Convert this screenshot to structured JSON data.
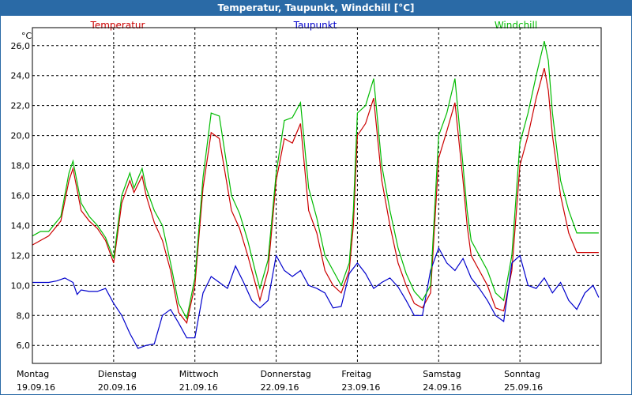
{
  "window": {
    "title": "Temperatur, Taupunkt, Windchill [°C]"
  },
  "chart_data": {
    "type": "line",
    "title": "Temperatur, Taupunkt, Windchill [°C]",
    "ylabel": "°C",
    "ylim": [
      4.8,
      27.2
    ],
    "yticks": [
      "6,0",
      "8,0",
      "10,0",
      "12,0",
      "14,0",
      "16,0",
      "18,0",
      "20,0",
      "22,0",
      "24,0",
      "26,0"
    ],
    "ytick_values": [
      6,
      8,
      10,
      12,
      14,
      16,
      18,
      20,
      22,
      24,
      26
    ],
    "xlim": [
      0,
      7
    ],
    "days": [
      {
        "weekday": "Montag",
        "date": "19.09.16"
      },
      {
        "weekday": "Dienstag",
        "date": "20.09.16"
      },
      {
        "weekday": "Mittwoch",
        "date": "21.09.16"
      },
      {
        "weekday": "Donnerstag",
        "date": "22.09.16"
      },
      {
        "weekday": "Freitag",
        "date": "23.09.16"
      },
      {
        "weekday": "Samstag",
        "date": "24.09.16"
      },
      {
        "weekday": "Sonntag",
        "date": "25.09.16"
      }
    ],
    "grid": true,
    "legend_position": "top",
    "series": [
      {
        "name": "Temperatur",
        "color": "#cc0000",
        "x": [
          0,
          0.1,
          0.2,
          0.35,
          0.45,
          0.5,
          0.6,
          0.7,
          0.8,
          0.9,
          1.0,
          1.1,
          1.2,
          1.25,
          1.35,
          1.4,
          1.5,
          1.6,
          1.7,
          1.8,
          1.9,
          2.0,
          2.1,
          2.2,
          2.3,
          2.45,
          2.55,
          2.65,
          2.75,
          2.8,
          2.9,
          3.0,
          3.1,
          3.2,
          3.3,
          3.4,
          3.5,
          3.6,
          3.7,
          3.8,
          3.9,
          3.95,
          4.0,
          4.1,
          4.2,
          4.3,
          4.4,
          4.5,
          4.6,
          4.7,
          4.8,
          4.9,
          5.0,
          5.1,
          5.2,
          5.3,
          5.35,
          5.4,
          5.5,
          5.6,
          5.7,
          5.8,
          5.9,
          6.0,
          6.1,
          6.2,
          6.3,
          6.35,
          6.4,
          6.5,
          6.6,
          6.7,
          6.8,
          6.9,
          6.97
        ],
        "values": [
          12.7,
          13.0,
          13.3,
          14.3,
          17.0,
          17.8,
          15.0,
          14.3,
          13.8,
          13.0,
          11.5,
          15.5,
          17.0,
          16.2,
          17.3,
          16.0,
          14.2,
          13.0,
          11.0,
          8.2,
          7.5,
          10.0,
          16.5,
          20.2,
          19.8,
          15.0,
          13.8,
          12.0,
          10.0,
          9.0,
          11.0,
          17.0,
          19.8,
          19.5,
          20.8,
          15.0,
          13.5,
          11.0,
          10.0,
          9.5,
          11.0,
          14.0,
          20.0,
          20.8,
          22.5,
          17.0,
          14.0,
          11.5,
          10.0,
          8.8,
          8.5,
          9.5,
          18.5,
          20.3,
          22.2,
          17.0,
          14.0,
          12.0,
          11.0,
          10.0,
          8.5,
          8.3,
          11.0,
          18.0,
          20.0,
          22.5,
          24.5,
          23.0,
          20.0,
          16.0,
          13.5,
          12.2,
          12.2,
          12.2,
          12.2
        ]
      },
      {
        "name": "Taupunkt",
        "color": "#0000cc",
        "x": [
          0,
          0.1,
          0.2,
          0.3,
          0.4,
          0.5,
          0.55,
          0.6,
          0.7,
          0.8,
          0.9,
          1.0,
          1.1,
          1.2,
          1.3,
          1.4,
          1.5,
          1.6,
          1.7,
          1.8,
          1.9,
          2.0,
          2.1,
          2.2,
          2.3,
          2.4,
          2.5,
          2.6,
          2.7,
          2.8,
          2.9,
          3.0,
          3.1,
          3.2,
          3.3,
          3.4,
          3.5,
          3.6,
          3.7,
          3.8,
          3.9,
          4.0,
          4.1,
          4.2,
          4.3,
          4.4,
          4.5,
          4.6,
          4.7,
          4.8,
          4.9,
          5.0,
          5.1,
          5.2,
          5.3,
          5.4,
          5.5,
          5.6,
          5.7,
          5.8,
          5.9,
          6.0,
          6.1,
          6.2,
          6.3,
          6.4,
          6.5,
          6.6,
          6.7,
          6.8,
          6.9,
          6.97
        ],
        "values": [
          10.2,
          10.2,
          10.2,
          10.3,
          10.5,
          10.2,
          9.4,
          9.7,
          9.6,
          9.6,
          9.8,
          8.8,
          8.0,
          6.8,
          5.8,
          6.0,
          6.1,
          8.0,
          8.4,
          7.5,
          6.5,
          6.5,
          9.5,
          10.6,
          10.2,
          9.8,
          11.3,
          10.2,
          9.0,
          8.5,
          9.0,
          12.0,
          11.0,
          10.6,
          11.0,
          10.0,
          9.8,
          9.5,
          8.5,
          8.6,
          10.8,
          11.5,
          10.8,
          9.8,
          10.2,
          10.5,
          9.9,
          9.0,
          8.0,
          8.0,
          11.0,
          12.5,
          11.5,
          11.0,
          11.8,
          10.5,
          9.8,
          9.0,
          8.0,
          7.6,
          11.5,
          12.0,
          10.0,
          9.8,
          10.5,
          9.5,
          10.2,
          9.0,
          8.4,
          9.5,
          10.0,
          9.2
        ]
      },
      {
        "name": "Windchill",
        "color": "#00bb00",
        "x": [
          0,
          0.1,
          0.2,
          0.35,
          0.45,
          0.5,
          0.6,
          0.7,
          0.8,
          0.9,
          1.0,
          1.1,
          1.2,
          1.25,
          1.35,
          1.4,
          1.5,
          1.6,
          1.7,
          1.8,
          1.9,
          2.0,
          2.1,
          2.2,
          2.3,
          2.45,
          2.55,
          2.65,
          2.75,
          2.8,
          2.9,
          3.0,
          3.1,
          3.2,
          3.3,
          3.4,
          3.5,
          3.6,
          3.7,
          3.8,
          3.9,
          3.95,
          4.0,
          4.1,
          4.2,
          4.3,
          4.4,
          4.5,
          4.6,
          4.7,
          4.8,
          4.9,
          5.0,
          5.1,
          5.2,
          5.3,
          5.35,
          5.4,
          5.5,
          5.6,
          5.7,
          5.8,
          5.9,
          6.0,
          6.1,
          6.2,
          6.3,
          6.35,
          6.4,
          6.5,
          6.6,
          6.7,
          6.8,
          6.9,
          6.97
        ],
        "values": [
          13.3,
          13.6,
          13.6,
          14.6,
          17.5,
          18.3,
          15.5,
          14.6,
          14.0,
          13.2,
          11.8,
          16.0,
          17.5,
          16.5,
          17.8,
          16.5,
          15.0,
          14.0,
          11.5,
          8.8,
          7.8,
          10.5,
          17.2,
          21.5,
          21.3,
          16.0,
          14.8,
          13.0,
          10.8,
          9.8,
          11.7,
          17.5,
          21.0,
          21.2,
          22.2,
          16.5,
          14.5,
          12.0,
          11.0,
          10.0,
          11.5,
          15.0,
          21.5,
          22.0,
          23.8,
          18.0,
          15.0,
          12.5,
          10.8,
          9.6,
          9.0,
          10.0,
          20.0,
          21.5,
          23.8,
          18.0,
          15.0,
          13.0,
          12.0,
          11.0,
          9.5,
          9.0,
          12.0,
          19.5,
          21.5,
          24.0,
          26.3,
          25.0,
          21.5,
          17.0,
          15.0,
          13.5,
          13.5,
          13.5,
          13.5
        ]
      }
    ]
  }
}
